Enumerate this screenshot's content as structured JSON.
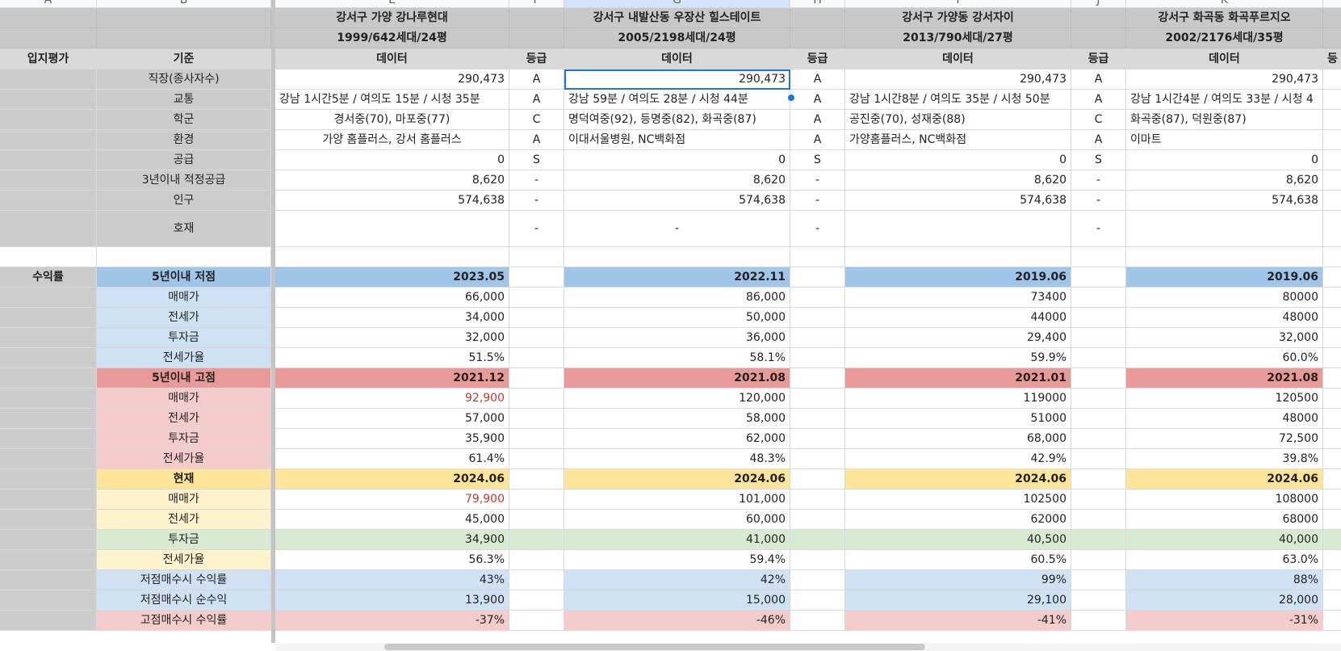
{
  "col_letters": [
    "A",
    "B",
    "",
    "E",
    "F",
    "G",
    "H",
    "I",
    "J",
    "K",
    ""
  ],
  "head": {
    "e1": "강서구 가양 강나루현대",
    "e2": "1999/642세대/24평",
    "g1": "강서구 내발산동 우장산 힐스테이트",
    "g2": "2005/2198세대/24평",
    "i1": "강서구 가양동 강서자이",
    "i2": "2013/790세대/27평",
    "k1": "강서구 화곡동 화곡푸르지오",
    "k2": "2002/2176세대/35평"
  },
  "labels": {
    "location": "입지평가",
    "criteria": "기준",
    "data": "데이터",
    "grade": "등급",
    "grade_partial": "등",
    "jobs": "직장(종사자수)",
    "transit": "교통",
    "school": "학군",
    "env": "환경",
    "supply": "공급",
    "supply3": "3년이내 적정공급",
    "pop": "인구",
    "dev": "호재",
    "returns": "수익률",
    "low5": "5년이내 저점",
    "high5": "5년이내 고점",
    "now": "현재",
    "sale": "매매가",
    "jeonse": "전세가",
    "invest": "투자금",
    "ratio": "전세가율",
    "low_rate": "저점매수시 수익률",
    "low_profit": "저점매수시 순수익",
    "high_rate": "고점매수시 수익률"
  },
  "e": {
    "jobs": "290,473",
    "jobs_g": "A",
    "transit": "강남 1시간5분 / 여의도 15분 / 시청 35분",
    "transit_g": "A",
    "school": "경서중(70), 마포중(77)",
    "school_g": "C",
    "env": "가양 홈플러스, 강서 홈플러스",
    "env_g": "A",
    "supply": "0",
    "supply_g": "S",
    "supply3": "8,620",
    "supply3_g": "-",
    "pop": "574,638",
    "pop_g": "-",
    "dev_g": "-",
    "low_date": "2023.05",
    "low_sale": "66,000",
    "low_jeonse": "34,000",
    "low_invest": "32,000",
    "low_ratio": "51.5%",
    "high_date": "2021.12",
    "high_sale": "92,900",
    "high_jeonse": "57,000",
    "high_invest": "35,900",
    "high_ratio": "61.4%",
    "now_date": "2024.06",
    "now_sale": "79,900",
    "now_jeonse": "45,000",
    "now_invest": "34,900",
    "now_ratio": "56.3%",
    "low_rate": "43%",
    "low_profit": "13,900",
    "high_rate": "-37%"
  },
  "g": {
    "jobs": "290,473",
    "jobs_g": "A",
    "transit": "강남 59분 / 여의도 28분 / 시청 44분",
    "transit_g": "A",
    "school": "명덕여중(92), 등명중(82), 화곡중(87)",
    "school_g": "A",
    "env": "이대서울병원, NC백화점",
    "env_g": "A",
    "supply": "0",
    "supply_g": "S",
    "supply3": "8,620",
    "supply3_g": "-",
    "pop": "574,638",
    "pop_g": "-",
    "dev": "-",
    "dev_g": "-",
    "low_date": "2022.11",
    "low_sale": "86,000",
    "low_jeonse": "50,000",
    "low_invest": "36,000",
    "low_ratio": "58.1%",
    "high_date": "2021.08",
    "high_sale": "120,000",
    "high_jeonse": "58,000",
    "high_invest": "62,000",
    "high_ratio": "48.3%",
    "now_date": "2024.06",
    "now_sale": "101,000",
    "now_jeonse": "60,000",
    "now_invest": "41,000",
    "now_ratio": "59.4%",
    "low_rate": "42%",
    "low_profit": "15,000",
    "high_rate": "-46%"
  },
  "i": {
    "jobs": "290,473",
    "jobs_g": "A",
    "transit": "강남 1시간8분 / 여의도 35분 / 시청 50분",
    "transit_g": "A",
    "school": "공진중(70), 성재중(88)",
    "school_g": "C",
    "env": "가양홈플러스, NC백화점",
    "env_g": "A",
    "supply": "0",
    "supply_g": "S",
    "supply3": "8,620",
    "supply3_g": "-",
    "pop": "574,638",
    "pop_g": "-",
    "dev_g": "-",
    "low_date": "2019.06",
    "low_sale": "73400",
    "low_jeonse": "44000",
    "low_invest": "29,400",
    "low_ratio": "59.9%",
    "high_date": "2021.01",
    "high_sale": "119000",
    "high_jeonse": "51000",
    "high_invest": "68,000",
    "high_ratio": "42.9%",
    "now_date": "2024.06",
    "now_sale": "102500",
    "now_jeonse": "62000",
    "now_invest": "40,500",
    "now_ratio": "60.5%",
    "low_rate": "99%",
    "low_profit": "29,100",
    "high_rate": "-41%"
  },
  "k": {
    "jobs": "290,473",
    "transit": "강남 1시간4분 / 여의도 33분 / 시청 4",
    "school": "화곡중(87), 덕원중(87)",
    "env": "이마트",
    "supply": "0",
    "supply3": "8,620",
    "pop": "574,638",
    "low_date": "2019.06",
    "low_sale": "80000",
    "low_jeonse": "48000",
    "low_invest": "32,000",
    "low_ratio": "60.0%",
    "high_date": "2021.08",
    "high_sale": "120500",
    "high_jeonse": "48000",
    "high_invest": "72,500",
    "high_ratio": "39.8%",
    "now_date": "2024.06",
    "now_sale": "108000",
    "now_jeonse": "68000",
    "now_invest": "40,000",
    "now_ratio": "63.0%",
    "low_rate": "88%",
    "low_profit": "28,000",
    "high_rate": "-31%"
  },
  "colors": {
    "header": "#d9d9d9",
    "gray": "#cccccc",
    "blue_dark": "#9fc5e8",
    "blue_light": "#cfe2f3",
    "red_dark": "#ea9999",
    "red_light": "#f4cccc",
    "yellow_dark": "#ffe599",
    "yellow_light": "#fff2cc",
    "green": "#d9ead3",
    "selection": "#1a73e8"
  }
}
